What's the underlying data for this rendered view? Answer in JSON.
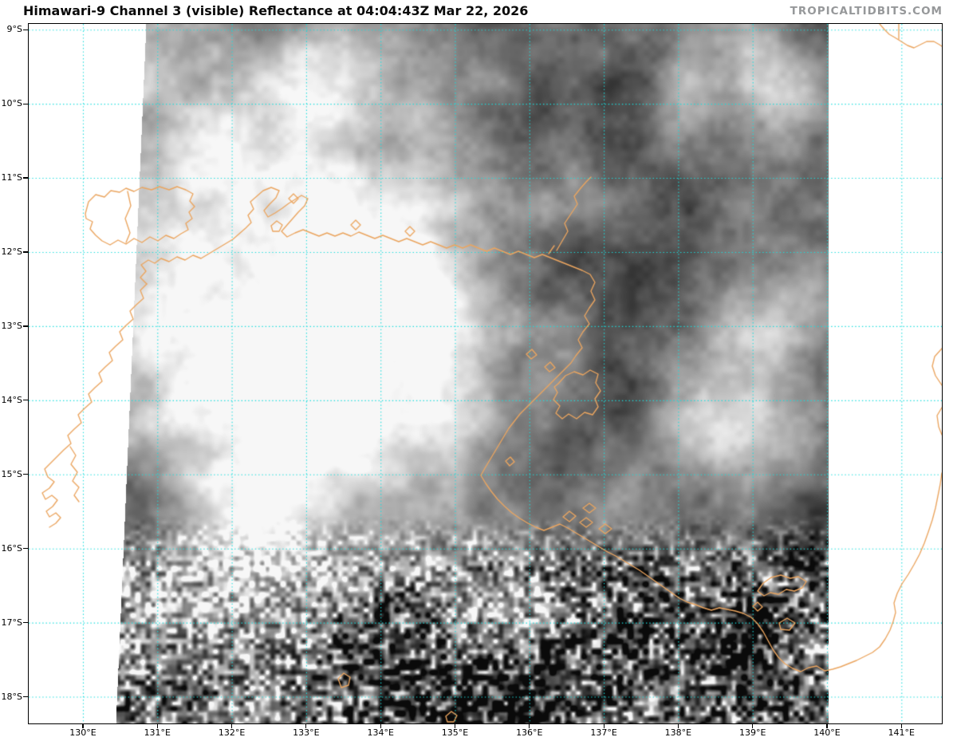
{
  "header": {
    "title": "Himawari-9 Channel 3 (visible) Reflectance at 04:04:43Z Mar 22, 2026",
    "watermark": "TROPICALTIDBITS.COM"
  },
  "map": {
    "satellite": "Himawari-9",
    "channel": "Channel 3 (visible)",
    "product": "Reflectance",
    "valid_time": "04:04:43Z Mar 22, 2026",
    "lat_tick_labels": [
      "9°S",
      "10°S",
      "11°S",
      "12°S",
      "13°S",
      "14°S",
      "15°S",
      "16°S",
      "17°S",
      "18°S"
    ],
    "lon_tick_labels": [
      "130°E",
      "131°E",
      "132°E",
      "133°E",
      "134°E",
      "135°E",
      "136°E",
      "137°E",
      "138°E",
      "139°E",
      "140°E",
      "141°E"
    ],
    "colors": {
      "gridline": "#17dede",
      "coastline": "#eba55f",
      "watermark_gray": "#96989a",
      "border": "#000000"
    }
  }
}
